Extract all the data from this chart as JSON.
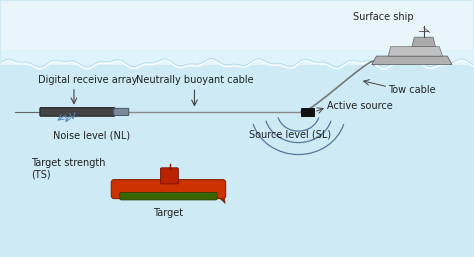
{
  "background_color": "#cdeaf5",
  "water_color": "#cdeaf5",
  "sky_color": "#e8f6fc",
  "wave_color": "#ffffff",
  "labels": {
    "surface_ship": "Surface ship",
    "digital_receive_array": "Digital receive array",
    "neutrally_buoyant_cable": "Neutrally buoyant cable",
    "tow_cable": "Tow cable",
    "active_source": "Active source",
    "noise_level": "Noise level (NL)",
    "source_level": "Source level (SL)",
    "target_strength": "Target strength\n(TS)",
    "target": "Target"
  },
  "colors": {
    "text": "#222222",
    "array_body": "#cccccc",
    "array_dark": "#555555",
    "cable": "#888888",
    "tow_cable_color": "#777777",
    "active_source_box": "#111111",
    "submarine_body": "#cc3300",
    "submarine_belly": "#4a7700",
    "submarine_tower": "#aa2200",
    "wave_lines": "#aaddee",
    "arrow": "#444444",
    "sound_arc": "#557799",
    "noise_arc": "#5588aa"
  },
  "figsize": [
    4.74,
    2.57
  ],
  "dpi": 100
}
